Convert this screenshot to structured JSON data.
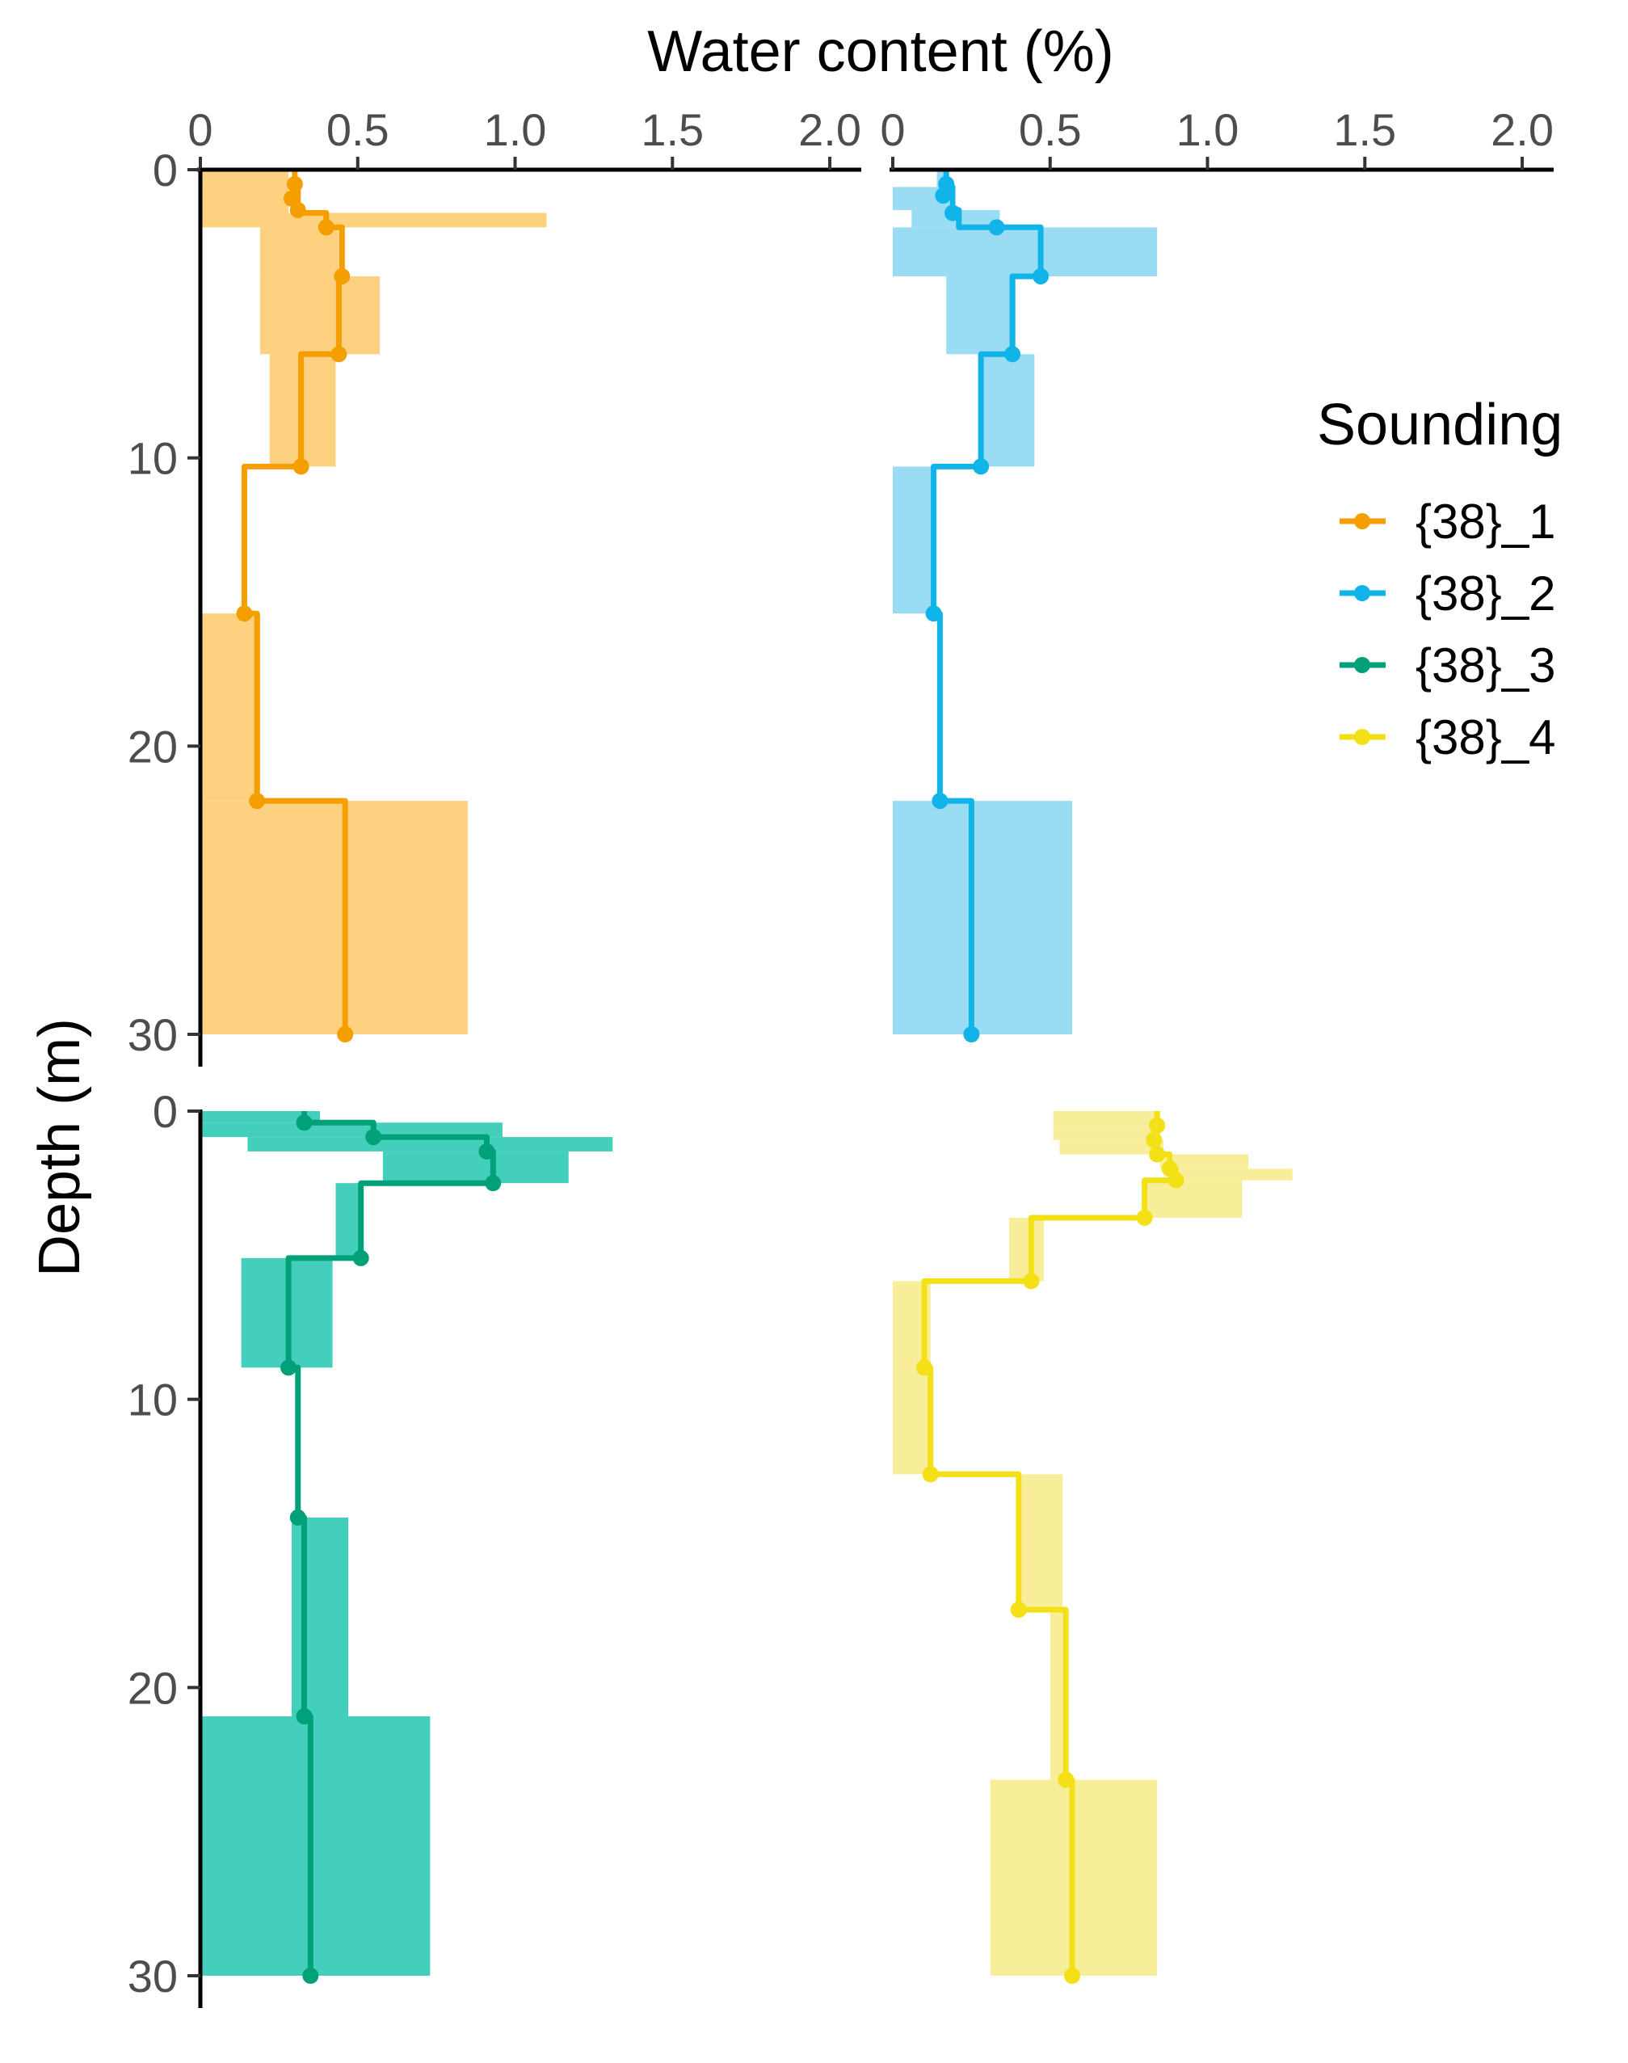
{
  "chart_data": {
    "type": "line",
    "title": "",
    "xlabel": "Water content (%)",
    "ylabel": "Depth (m)",
    "xlim": [
      0,
      2.1
    ],
    "ylim": [
      0,
      30
    ],
    "x_ticks": [
      0,
      0.5,
      1.0,
      1.5,
      2.0
    ],
    "x_tick_labels": [
      "0",
      "0.5",
      "1.0",
      "1.5",
      "2.0"
    ],
    "y_ticks": [
      0,
      10,
      20,
      30
    ],
    "y_tick_labels": [
      "0",
      "10",
      "20",
      "30"
    ],
    "grid": false,
    "legend": {
      "title": "Sounding",
      "position": "right"
    },
    "series": [
      {
        "name": "{38}_1",
        "color": "#f59e00",
        "band_color": "#fdd180",
        "layers": [
          {
            "top": 0.0,
            "bottom": 0.5,
            "value": 0.3,
            "low": 0.0,
            "high": 0.28
          },
          {
            "top": 0.5,
            "bottom": 1.5,
            "value": 0.31,
            "low": 0.0,
            "high": 0.28
          },
          {
            "top": 1.5,
            "bottom": 2.0,
            "value": 0.4,
            "low": 0.0,
            "high": 1.1
          },
          {
            "top": 2.0,
            "bottom": 3.7,
            "value": 0.45,
            "low": 0.19,
            "high": 0.44
          },
          {
            "top": 3.7,
            "bottom": 6.4,
            "value": 0.44,
            "low": 0.19,
            "high": 0.57
          },
          {
            "top": 6.4,
            "bottom": 10.3,
            "value": 0.32,
            "low": 0.22,
            "high": 0.43
          },
          {
            "top": 10.3,
            "bottom": 15.4,
            "value": 0.14,
            "low": 0.0,
            "high": 0.0
          },
          {
            "top": 15.4,
            "bottom": 21.9,
            "value": 0.18,
            "low": 0.0,
            "high": 0.19
          },
          {
            "top": 21.9,
            "bottom": 30.0,
            "value": 0.46,
            "low": 0.0,
            "high": 0.85
          }
        ],
        "points": [
          {
            "value": 0.3,
            "depth": 0.5
          },
          {
            "value": 0.29,
            "depth": 1.0
          },
          {
            "value": 0.31,
            "depth": 1.4
          },
          {
            "value": 0.4,
            "depth": 2.0
          },
          {
            "value": 0.45,
            "depth": 3.7
          },
          {
            "value": 0.44,
            "depth": 6.4
          },
          {
            "value": 0.32,
            "depth": 10.3
          },
          {
            "value": 0.14,
            "depth": 15.4
          },
          {
            "value": 0.18,
            "depth": 21.9
          },
          {
            "value": 0.46,
            "depth": 30.0
          }
        ]
      },
      {
        "name": "{38}_2",
        "color": "#10b4e8",
        "band_color": "#9adcf3",
        "layers": [
          {
            "top": 0.0,
            "bottom": 0.6,
            "value": 0.17,
            "low": 0.14,
            "high": 0.17
          },
          {
            "top": 0.6,
            "bottom": 1.4,
            "value": 0.19,
            "low": 0.0,
            "high": 0.18
          },
          {
            "top": 1.4,
            "bottom": 2.0,
            "value": 0.21,
            "low": 0.06,
            "high": 0.34
          },
          {
            "top": 2.0,
            "bottom": 3.7,
            "value": 0.47,
            "low": 0.0,
            "high": 0.84
          },
          {
            "top": 3.7,
            "bottom": 6.4,
            "value": 0.38,
            "low": 0.17,
            "high": 0.39
          },
          {
            "top": 6.4,
            "bottom": 10.3,
            "value": 0.28,
            "low": 0.28,
            "high": 0.45
          },
          {
            "top": 10.3,
            "bottom": 15.4,
            "value": 0.13,
            "low": 0.0,
            "high": 0.13
          },
          {
            "top": 15.4,
            "bottom": 21.9,
            "value": 0.15,
            "low": 0.0,
            "high": 0.0
          },
          {
            "top": 21.9,
            "bottom": 30.0,
            "value": 0.25,
            "low": 0.0,
            "high": 0.57
          }
        ],
        "points": [
          {
            "value": 0.17,
            "depth": 0.5
          },
          {
            "value": 0.16,
            "depth": 0.9
          },
          {
            "value": 0.19,
            "depth": 1.5
          },
          {
            "value": 0.33,
            "depth": 2.0
          },
          {
            "value": 0.47,
            "depth": 3.7
          },
          {
            "value": 0.38,
            "depth": 6.4
          },
          {
            "value": 0.28,
            "depth": 10.3
          },
          {
            "value": 0.13,
            "depth": 15.4
          },
          {
            "value": 0.15,
            "depth": 21.9
          },
          {
            "value": 0.25,
            "depth": 30.0
          }
        ]
      },
      {
        "name": "{38}_3",
        "color": "#00a078",
        "band_color": "#43cfbb",
        "layers": [
          {
            "top": 0.0,
            "bottom": 0.4,
            "value": 0.33,
            "low": 0.0,
            "high": 0.38
          },
          {
            "top": 0.4,
            "bottom": 0.9,
            "value": 0.55,
            "low": 0.0,
            "high": 0.96
          },
          {
            "top": 0.9,
            "bottom": 1.4,
            "value": 0.91,
            "low": 0.15,
            "high": 1.31
          },
          {
            "top": 1.4,
            "bottom": 2.5,
            "value": 0.93,
            "low": 0.58,
            "high": 1.17
          },
          {
            "top": 2.5,
            "bottom": 5.1,
            "value": 0.51,
            "low": 0.43,
            "high": 0.51
          },
          {
            "top": 5.1,
            "bottom": 8.9,
            "value": 0.28,
            "low": 0.13,
            "high": 0.42
          },
          {
            "top": 8.9,
            "bottom": 14.1,
            "value": 0.31,
            "low": 0.31,
            "high": 0.31
          },
          {
            "top": 14.1,
            "bottom": 21.0,
            "value": 0.33,
            "low": 0.29,
            "high": 0.47
          },
          {
            "top": 21.0,
            "bottom": 30.0,
            "value": 0.35,
            "low": 0.0,
            "high": 0.73
          }
        ],
        "points": [
          {
            "value": 0.33,
            "depth": 0.4
          },
          {
            "value": 0.55,
            "depth": 0.9
          },
          {
            "value": 0.91,
            "depth": 1.4
          },
          {
            "value": 0.93,
            "depth": 2.5
          },
          {
            "value": 0.51,
            "depth": 5.1
          },
          {
            "value": 0.28,
            "depth": 8.9
          },
          {
            "value": 0.31,
            "depth": 14.1
          },
          {
            "value": 0.33,
            "depth": 21.0
          },
          {
            "value": 0.35,
            "depth": 30.0
          }
        ]
      },
      {
        "name": "{38}_4",
        "color": "#f3e016",
        "band_color": "#f8ee9a",
        "layers": [
          {
            "top": 0.0,
            "bottom": 0.5,
            "value": 0.84,
            "low": 0.51,
            "high": 0.84
          },
          {
            "top": 0.5,
            "bottom": 1.0,
            "value": 0.83,
            "low": 0.51,
            "high": 0.85
          },
          {
            "top": 1.0,
            "bottom": 1.5,
            "value": 0.84,
            "low": 0.53,
            "high": 0.86
          },
          {
            "top": 1.5,
            "bottom": 2.0,
            "value": 0.88,
            "low": 0.85,
            "high": 1.13
          },
          {
            "top": 2.0,
            "bottom": 2.4,
            "value": 0.9,
            "low": 0.91,
            "high": 1.27
          },
          {
            "top": 2.4,
            "bottom": 3.7,
            "value": 0.8,
            "low": 0.8,
            "high": 1.11
          },
          {
            "top": 3.7,
            "bottom": 5.9,
            "value": 0.44,
            "low": 0.37,
            "high": 0.48
          },
          {
            "top": 5.9,
            "bottom": 8.9,
            "value": 0.1,
            "low": 0.0,
            "high": 0.12
          },
          {
            "top": 8.9,
            "bottom": 12.6,
            "value": 0.12,
            "low": 0.0,
            "high": 0.12
          },
          {
            "top": 12.6,
            "bottom": 17.3,
            "value": 0.4,
            "low": 0.4,
            "high": 0.54
          },
          {
            "top": 17.3,
            "bottom": 23.2,
            "value": 0.55,
            "low": 0.5,
            "high": 0.55
          },
          {
            "top": 23.2,
            "bottom": 30.0,
            "value": 0.57,
            "low": 0.31,
            "high": 0.84
          }
        ],
        "points": [
          {
            "value": 0.84,
            "depth": 0.5
          },
          {
            "value": 0.83,
            "depth": 1.0
          },
          {
            "value": 0.84,
            "depth": 1.5
          },
          {
            "value": 0.88,
            "depth": 2.0
          },
          {
            "value": 0.9,
            "depth": 2.4
          },
          {
            "value": 0.8,
            "depth": 3.7
          },
          {
            "value": 0.44,
            "depth": 5.9
          },
          {
            "value": 0.1,
            "depth": 8.9
          },
          {
            "value": 0.12,
            "depth": 12.6
          },
          {
            "value": 0.4,
            "depth": 17.3
          },
          {
            "value": 0.55,
            "depth": 23.2
          },
          {
            "value": 0.57,
            "depth": 30.0
          }
        ]
      }
    ]
  }
}
